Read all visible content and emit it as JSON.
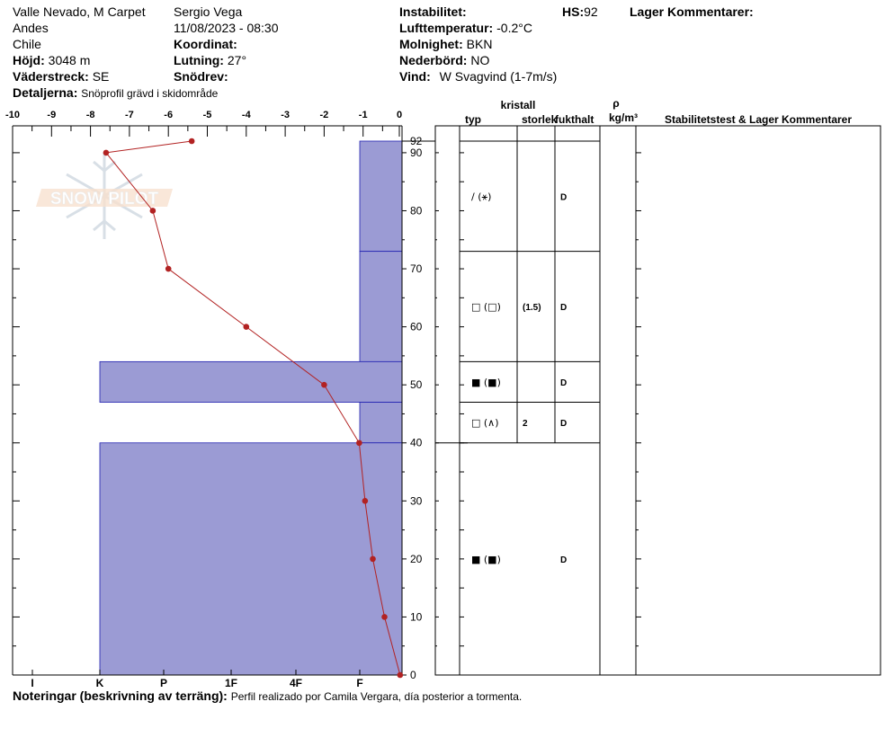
{
  "header": {
    "location": "Valle Nevado, M Carpet",
    "range": "Andes",
    "country": "Chile",
    "elevation_label": "Höjd:",
    "elevation": "3048 m",
    "aspect_label": "Väderstreck:",
    "aspect": "SE",
    "details_label": "Detaljerna:",
    "details": "Snöprofil grävd i skidområde",
    "observer": "Sergio Vega",
    "datetime": "11/08/2023 - 08:30",
    "coord_label": "Koordinat:",
    "coord": "",
    "slope_label": "Lutning:",
    "slope": "27°",
    "drift_label": "Snödrev:",
    "drift": "",
    "instability_label": "Instabilitet:",
    "instability": "",
    "airtemp_label": "Lufttemperatur:",
    "airtemp": "-0.2°C",
    "sky_label": "Molnighet:",
    "sky": "BKN",
    "precip_label": "Nederbörd:",
    "precip": "NO",
    "wind_label": "Vind:",
    "wind": "W Svagvind (1-7m/s)",
    "hs_label": "HS:",
    "hs": "92",
    "layer_comments_label": "Lager Kommentarer:"
  },
  "watermark": "SNOW PILOT",
  "table_headers": {
    "crystal": "kristall",
    "type": "typ",
    "size": "storlek",
    "moisture": "fukthalt",
    "rho": "ρ",
    "density_unit": "kg/m³",
    "stability": "Stabilitetstest & Lager Kommentarer"
  },
  "layers": [
    {
      "top": 92,
      "bottom": 73,
      "form": "/ (⚹)",
      "size": "",
      "moisture": "D"
    },
    {
      "top": 73,
      "bottom": 54,
      "form": "□ (□)",
      "size": "(1.5)",
      "moisture": "D"
    },
    {
      "top": 54,
      "bottom": 47,
      "form": "■ (■)",
      "size": "",
      "moisture": "D"
    },
    {
      "top": 47,
      "bottom": 40,
      "form": "□ (∧)",
      "size": "2",
      "moisture": "D"
    },
    {
      "top": 40,
      "bottom": 0,
      "form": "■ (■)",
      "size": "",
      "moisture": "D"
    }
  ],
  "notes": {
    "label": "Noteringar (beskrivning av terräng):",
    "text": "Perfil realizado por Camila Vergara, día posterior a tormenta."
  },
  "chart_data": {
    "type": "line",
    "temperature_axis": {
      "ticks": [
        "-10",
        "-9",
        "-8",
        "-7",
        "-6",
        "-5",
        "-4",
        "-3",
        "-2",
        "-1",
        "0"
      ],
      "range": [
        -10,
        0
      ]
    },
    "height_axis": {
      "ticks": [
        0,
        10,
        20,
        30,
        40,
        50,
        60,
        70,
        80,
        90
      ],
      "range": [
        0,
        92
      ],
      "top_label": "92"
    },
    "hardness_axis": {
      "ticks": [
        "I",
        "K",
        "P",
        "1F",
        "4F",
        "F"
      ]
    },
    "temperature_profile": [
      {
        "height": 92,
        "temp": -5.4
      },
      {
        "height": 90,
        "temp": -7.6
      },
      {
        "height": 80,
        "temp": -6.4
      },
      {
        "height": 70,
        "temp": -6.0
      },
      {
        "height": 60,
        "temp": -4.0
      },
      {
        "height": 50,
        "temp": -2.0
      },
      {
        "height": 40,
        "temp": -1.1
      },
      {
        "height": 30,
        "temp": -0.95
      },
      {
        "height": 20,
        "temp": -0.75
      },
      {
        "height": 10,
        "temp": -0.45
      },
      {
        "height": 0,
        "temp": -0.05
      }
    ],
    "hardness_profile": [
      {
        "top": 92,
        "bottom": 73,
        "hardness": "F"
      },
      {
        "top": 73,
        "bottom": 54,
        "hardness": "F"
      },
      {
        "top": 54,
        "bottom": 47,
        "hardness": "K"
      },
      {
        "top": 47,
        "bottom": 40,
        "hardness": "F"
      },
      {
        "top": 40,
        "bottom": 0,
        "hardness": "K"
      }
    ],
    "colors": {
      "hardness_fill": "#9b9bd4",
      "hardness_stroke": "#2020b0",
      "temp_line": "#b22222"
    }
  }
}
